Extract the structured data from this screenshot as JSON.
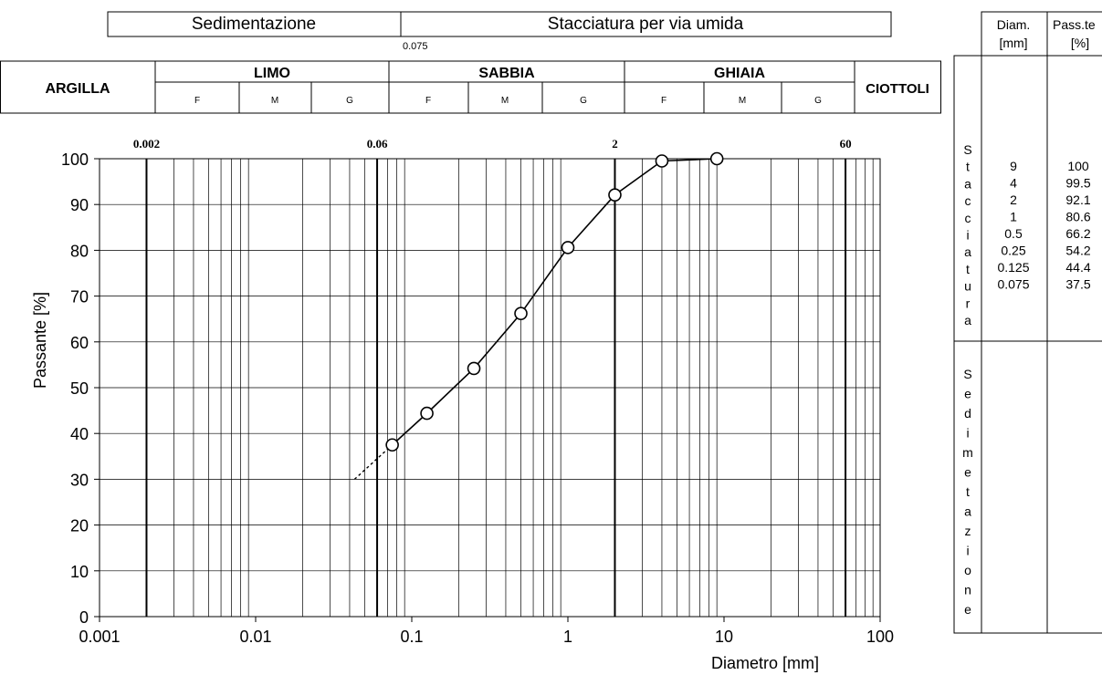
{
  "top_bands": {
    "sedimentation": "Sedimentazione",
    "sieving": "Stacciatura per via umida",
    "sieve_limit_label": "0.075"
  },
  "classes": {
    "clay": "ARGILLA",
    "silt": "LIMO",
    "sand": "SABBIA",
    "gravel": "GHIAIA",
    "cobbles": "CIOTTOLI",
    "sub_fine": "F",
    "sub_medium": "M",
    "sub_coarse": "G"
  },
  "boundary_labels": [
    "0.002",
    "0.06",
    "2",
    "60"
  ],
  "chart_data": {
    "type": "line",
    "xscale": "log",
    "xlim": [
      0.001,
      100
    ],
    "ylim": [
      0,
      100
    ],
    "xlabel": "Diametro [mm]",
    "ylabel": "Passante [%]",
    "x_ticks": [
      "0.001",
      "0.01",
      "0.1",
      "1",
      "10",
      "100"
    ],
    "y_ticks": [
      "0",
      "10",
      "20",
      "30",
      "40",
      "50",
      "60",
      "70",
      "80",
      "90",
      "100"
    ],
    "grid": true,
    "series": [
      {
        "x": [
          0.075,
          0.125,
          0.25,
          0.5,
          1,
          2,
          4,
          9
        ],
        "y": [
          37.5,
          44.4,
          54.2,
          66.2,
          80.6,
          92.1,
          99.5,
          100
        ]
      }
    ],
    "extrapolation": {
      "x": [
        0.043,
        0.075
      ],
      "y": [
        30.0,
        37.5
      ],
      "style": "dashed"
    },
    "boundaries": [
      0.002,
      0.06,
      2,
      60
    ]
  },
  "table": {
    "header_diam": "Diam.",
    "header_diam_unit": "[mm]",
    "header_pass": "Pass.te",
    "header_pass_unit": "[%]",
    "sieve_side_letters": [
      "S",
      "t",
      "a",
      "c",
      "c",
      "i",
      "a",
      "t",
      "u",
      "r",
      "a"
    ],
    "sed_side_letters": [
      "S",
      "e",
      "d",
      "i",
      "m",
      "e",
      "t",
      "a",
      "z",
      "i",
      "o",
      "n",
      "e"
    ],
    "rows": [
      {
        "diam": "9",
        "pass": "100"
      },
      {
        "diam": "4",
        "pass": "99.5"
      },
      {
        "diam": "2",
        "pass": "92.1"
      },
      {
        "diam": "1",
        "pass": "80.6"
      },
      {
        "diam": "0.5",
        "pass": "66.2"
      },
      {
        "diam": "0.25",
        "pass": "54.2"
      },
      {
        "diam": "0.125",
        "pass": "44.4"
      },
      {
        "diam": "0.075",
        "pass": "37.5"
      }
    ]
  }
}
